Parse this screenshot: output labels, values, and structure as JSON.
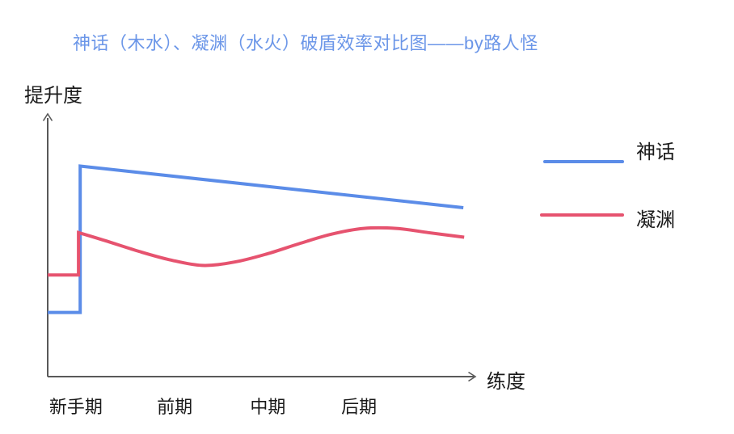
{
  "chart": {
    "title": "神话（木水）、凝渊（水火）破盾效率对比图——by路人怪",
    "title_color": "#6B96E8",
    "ylabel": "提升度",
    "xlabel": "练度",
    "axis_color": "#595959",
    "text_color": "#1A1A1A"
  },
  "chart_data": {
    "type": "line",
    "title": "神话（木水）、凝渊（水火）破盾效率对比图——by路人怪",
    "xlabel": "练度",
    "ylabel": "提升度",
    "categories": [
      "新手期",
      "前期",
      "中期",
      "后期"
    ],
    "xlim": [
      0,
      100
    ],
    "ylim": [
      0,
      100
    ],
    "grid": false,
    "legend_position": "right",
    "series": [
      {
        "name": "神话",
        "color": "#5B8CE8",
        "segments": [
          {
            "smooth": false,
            "points": [
              [
                0,
                24.8
              ],
              [
                7.6,
                24.8
              ],
              [
                7.6,
                81.4
              ],
              [
                97.2,
                65.3
              ]
            ]
          }
        ]
      },
      {
        "name": "凝渊",
        "color": "#E6536F",
        "segments": [
          {
            "smooth": false,
            "points": [
              [
                0,
                39.3
              ],
              [
                7.2,
                39.3
              ],
              [
                7.2,
                55.7
              ]
            ]
          },
          {
            "smooth": true,
            "points": [
              [
                7.2,
                55.7
              ],
              [
                13.4,
                52.6
              ],
              [
                21.0,
                48.6
              ],
              [
                28.5,
                45.2
              ],
              [
                36.1,
                43.0
              ],
              [
                43.7,
                44.3
              ],
              [
                51.2,
                47.4
              ],
              [
                58.8,
                51.4
              ],
              [
                66.4,
                55.1
              ],
              [
                73.9,
                57.3
              ],
              [
                81.5,
                57.3
              ],
              [
                89.0,
                55.7
              ],
              [
                97.4,
                53.9
              ]
            ]
          }
        ]
      }
    ]
  }
}
